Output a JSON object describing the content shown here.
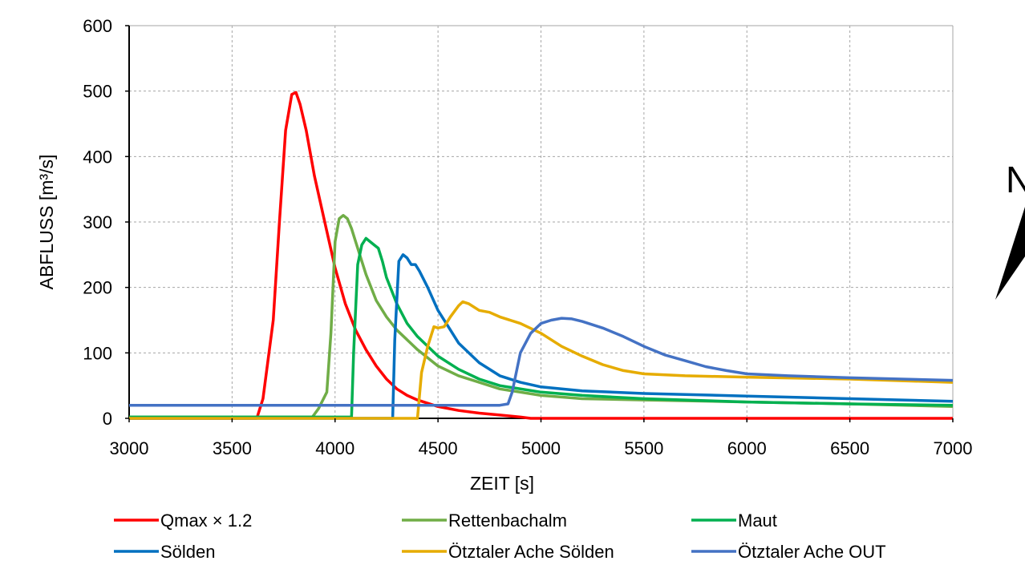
{
  "chart_data": {
    "type": "line",
    "xlabel": "ZEIT [s]",
    "ylabel": "ABFLUSS [m³/s]",
    "xlim": [
      3000,
      7000
    ],
    "ylim": [
      0,
      600
    ],
    "xticks": [
      3000,
      3500,
      4000,
      4500,
      5000,
      5500,
      6000,
      6500,
      7000
    ],
    "yticks": [
      0,
      100,
      200,
      300,
      400,
      500,
      600
    ],
    "grid": true,
    "legend_position": "bottom",
    "series": [
      {
        "name": "Qmax × 1.2",
        "color": "#ff0000",
        "x": [
          3000,
          3620,
          3650,
          3700,
          3730,
          3760,
          3790,
          3810,
          3830,
          3860,
          3900,
          3950,
          4000,
          4050,
          4100,
          4150,
          4200,
          4250,
          4300,
          4350,
          4400,
          4500,
          4600,
          4700,
          4800,
          4900,
          4950,
          5000,
          7000
        ],
        "y": [
          0,
          0,
          30,
          150,
          300,
          440,
          495,
          498,
          480,
          440,
          370,
          300,
          230,
          175,
          135,
          105,
          80,
          60,
          45,
          35,
          28,
          18,
          12,
          8,
          5,
          2,
          0,
          0,
          0
        ]
      },
      {
        "name": "Rettenbachalm",
        "color": "#70ad47",
        "x": [
          3000,
          3890,
          3920,
          3960,
          3980,
          4000,
          4020,
          4040,
          4060,
          4080,
          4100,
          4150,
          4200,
          4250,
          4300,
          4400,
          4500,
          4600,
          4700,
          4800,
          5000,
          5200,
          5500,
          6000,
          6500,
          7000
        ],
        "y": [
          2,
          2,
          15,
          40,
          130,
          270,
          305,
          310,
          305,
          290,
          270,
          220,
          180,
          155,
          135,
          105,
          80,
          65,
          55,
          45,
          35,
          30,
          28,
          25,
          22,
          18
        ]
      },
      {
        "name": "Maut",
        "color": "#00b050",
        "x": [
          3000,
          4080,
          4090,
          4110,
          4130,
          4150,
          4170,
          4190,
          4210,
          4230,
          4250,
          4300,
          4350,
          4400,
          4500,
          4600,
          4700,
          4800,
          5000,
          5200,
          5500,
          6000,
          6500,
          7000
        ],
        "y": [
          2,
          2,
          100,
          235,
          265,
          275,
          270,
          265,
          260,
          240,
          215,
          175,
          145,
          125,
          95,
          75,
          60,
          50,
          40,
          35,
          30,
          25,
          22,
          20
        ]
      },
      {
        "name": "Sölden",
        "color": "#0070c0",
        "x": [
          3000,
          4280,
          4290,
          4310,
          4330,
          4350,
          4370,
          4390,
          4410,
          4450,
          4500,
          4550,
          4600,
          4700,
          4800,
          4900,
          5000,
          5200,
          5500,
          6000,
          6500,
          7000
        ],
        "y": [
          0,
          0,
          120,
          240,
          250,
          245,
          235,
          235,
          225,
          200,
          165,
          140,
          115,
          85,
          65,
          55,
          48,
          42,
          38,
          34,
          30,
          26
        ]
      },
      {
        "name": "Ötztaler Ache Sölden",
        "color": "#e6ac00",
        "x": [
          3000,
          4400,
          4420,
          4450,
          4480,
          4500,
          4530,
          4560,
          4600,
          4620,
          4650,
          4700,
          4750,
          4800,
          4900,
          5000,
          5100,
          5200,
          5300,
          5400,
          5500,
          5700,
          6000,
          6500,
          7000
        ],
        "y": [
          0,
          0,
          70,
          110,
          140,
          138,
          140,
          155,
          172,
          178,
          175,
          165,
          162,
          155,
          145,
          130,
          110,
          95,
          82,
          73,
          68,
          65,
          63,
          60,
          55
        ]
      },
      {
        "name": "Ötztaler Ache OUT",
        "color": "#4472c4",
        "x": [
          3000,
          4800,
          4840,
          4860,
          4900,
          4950,
          5000,
          5050,
          5100,
          5150,
          5200,
          5300,
          5400,
          5500,
          5600,
          5700,
          5800,
          5900,
          6000,
          6200,
          6500,
          7000
        ],
        "y": [
          20,
          20,
          22,
          40,
          100,
          130,
          145,
          150,
          153,
          152,
          148,
          138,
          125,
          110,
          97,
          88,
          79,
          73,
          68,
          65,
          62,
          58
        ]
      }
    ]
  },
  "north_arrow": {
    "label": "N"
  }
}
